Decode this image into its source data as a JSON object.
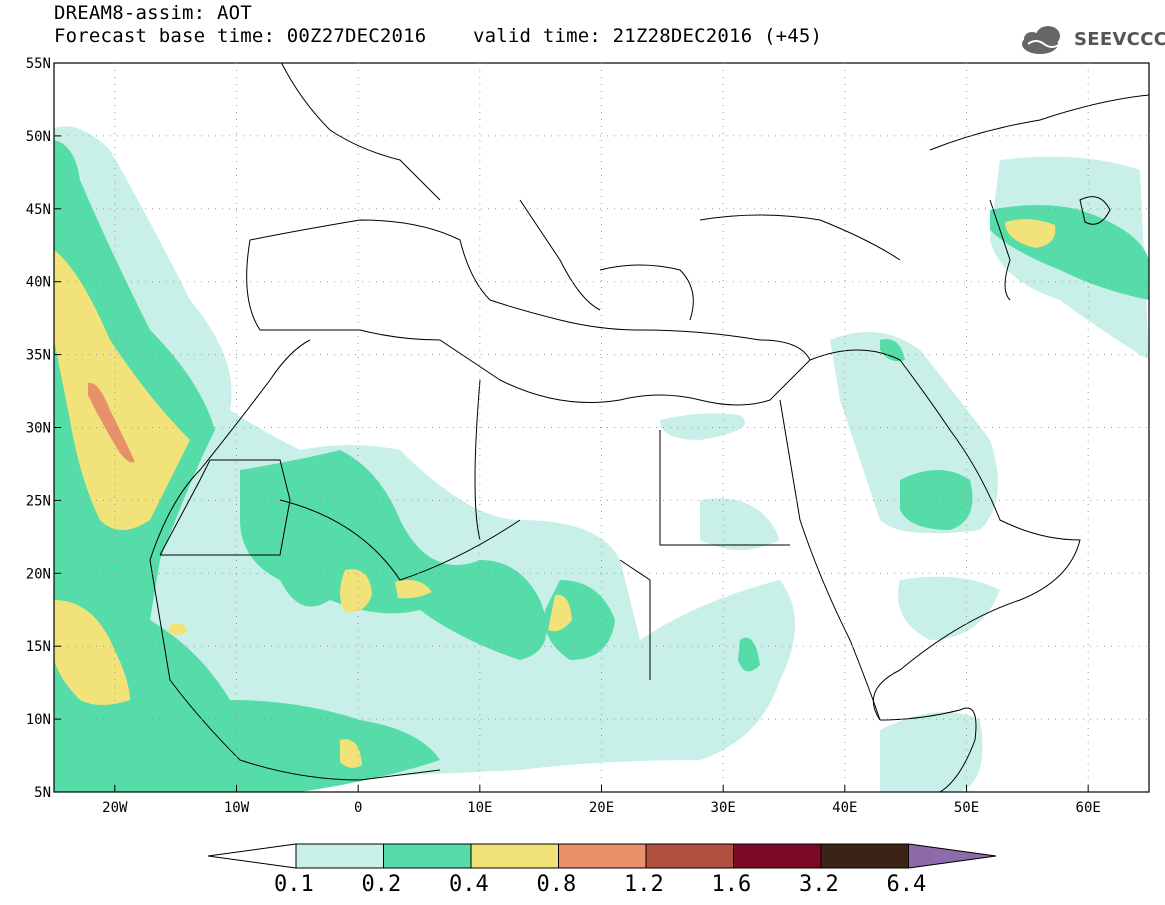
{
  "header": {
    "title_line1": "DREAM8-assim: AOT",
    "title_line2": "Forecast base time: 00Z27DEC2016    valid time: 21Z28DEC2016 (+45)",
    "logo_text": "SEEVCCC"
  },
  "map": {
    "lat_labels": [
      "55N",
      "50N",
      "45N",
      "40N",
      "35N",
      "30N",
      "25N",
      "20N",
      "15N",
      "10N",
      "5N"
    ],
    "lon_labels": [
      "20W",
      "10W",
      "0",
      "10E",
      "20E",
      "30E",
      "40E",
      "50E",
      "60E"
    ],
    "lat_values": [
      55,
      50,
      45,
      40,
      35,
      30,
      25,
      20,
      15,
      10,
      5
    ],
    "lon_values": [
      -20,
      -10,
      0,
      10,
      20,
      30,
      40,
      50,
      60
    ],
    "lon_range": [
      -25,
      65
    ],
    "lat_range": [
      5,
      55
    ],
    "grid": true
  },
  "colorbar": {
    "labels": [
      "0.1",
      "0.2",
      "0.4",
      "0.8",
      "1.2",
      "1.6",
      "3.2",
      "6.4"
    ],
    "colors": [
      "#c8f0e8",
      "#55dca8",
      "#f2e27a",
      "#e8906a",
      "#b05040",
      "#7a0a26",
      "#3b2416",
      "#8d6aaa"
    ]
  }
}
